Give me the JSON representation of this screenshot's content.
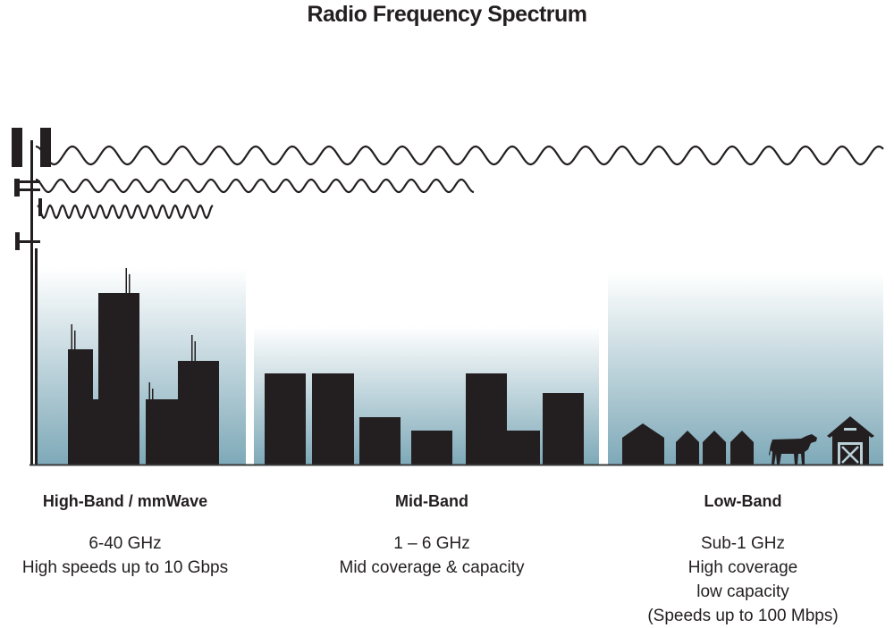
{
  "title": "Radio Frequency Spectrum",
  "bands": [
    {
      "name": "High-Band / mmWave",
      "lines": [
        "6-40 GHz",
        "High speeds up to 10 Gbps"
      ]
    },
    {
      "name": "Mid-Band",
      "lines": [
        "1 – 6 GHz",
        "Mid coverage & capacity"
      ]
    },
    {
      "name": "Low-Band",
      "lines": [
        "Sub-1 GHz",
        "High coverage",
        "low capacity",
        "(Speeds up to 100 Mbps)"
      ]
    }
  ],
  "colors": {
    "silhouette": "#231f20",
    "sky_top": "#ffffff",
    "sky_bottom": "#7ea9b8"
  }
}
